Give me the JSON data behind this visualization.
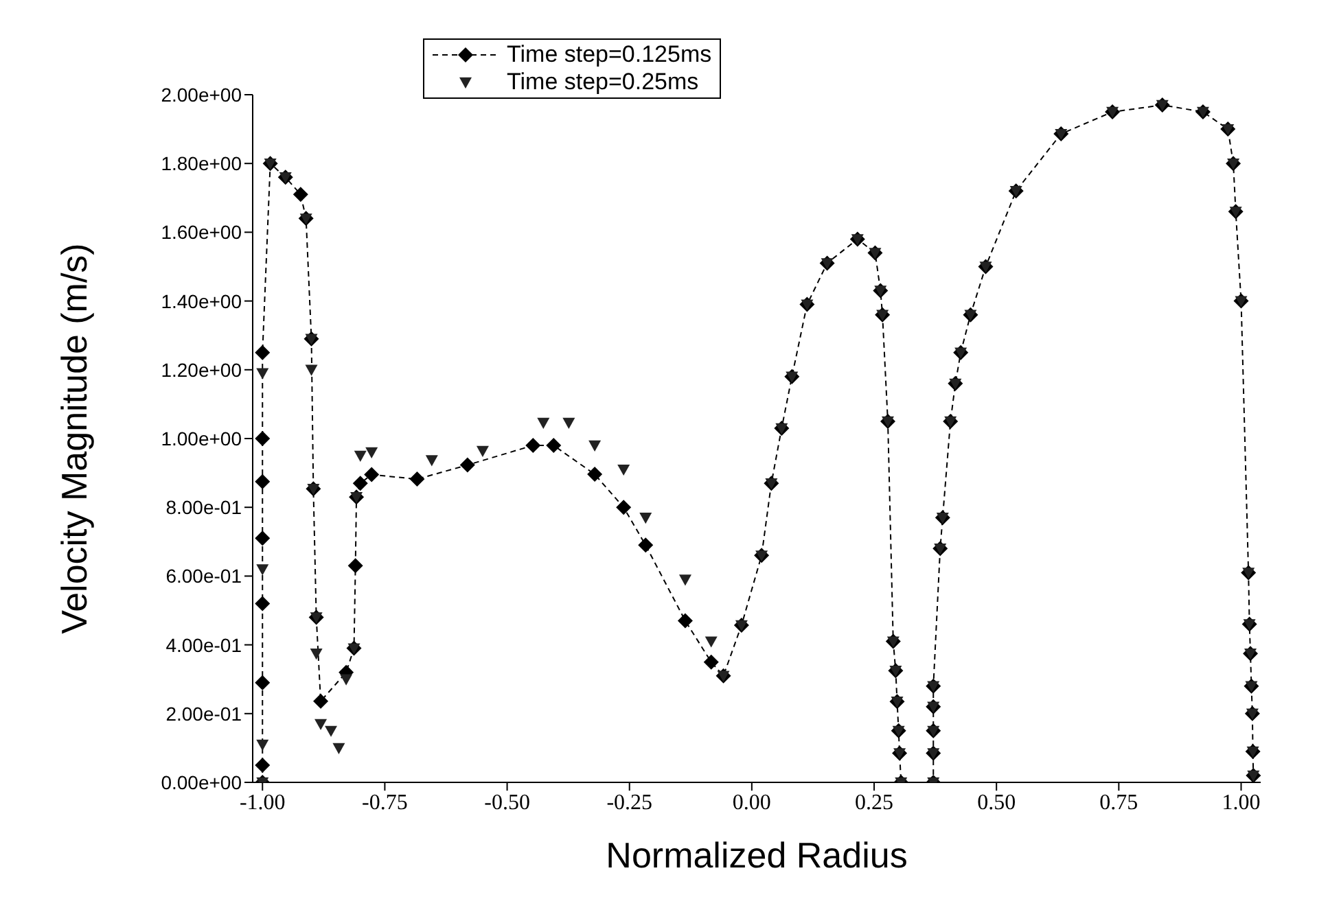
{
  "chart_data": {
    "type": "scatter",
    "xlabel": "Normalized Radius",
    "ylabel": "Velocity Magnitude (m/s)",
    "xlim": [
      -1.02,
      1.04
    ],
    "ylim": [
      0,
      2
    ],
    "xticks": [
      {
        "value": -1,
        "label": "-1.00"
      },
      {
        "value": -0.75,
        "label": "-0.75"
      },
      {
        "value": -0.5,
        "label": "-0.50"
      },
      {
        "value": -0.25,
        "label": "-0.25"
      },
      {
        "value": 0,
        "label": "0.00"
      },
      {
        "value": 0.25,
        "label": "0.25"
      },
      {
        "value": 0.5,
        "label": "0.50"
      },
      {
        "value": 0.75,
        "label": "0.75"
      },
      {
        "value": 1,
        "label": "1.00"
      }
    ],
    "yticks": [
      {
        "value": 0,
        "label": "0.00e+00"
      },
      {
        "value": 0.2,
        "label": "2.00e-01"
      },
      {
        "value": 0.4,
        "label": "4.00e-01"
      },
      {
        "value": 0.6,
        "label": "6.00e-01"
      },
      {
        "value": 0.8,
        "label": "8.00e-01"
      },
      {
        "value": 1.0,
        "label": "1.00e+00"
      },
      {
        "value": 1.2,
        "label": "1.20e+00"
      },
      {
        "value": 1.4,
        "label": "1.40e+00"
      },
      {
        "value": 1.6,
        "label": "1.60e+00"
      },
      {
        "value": 1.8,
        "label": "1.80e+00"
      },
      {
        "value": 2.0,
        "label": "2.00e+00"
      }
    ],
    "grid": false,
    "legend": "top",
    "series": [
      {
        "name": "Time step=0.125ms",
        "type": "line",
        "color": "#000000",
        "marker": "diamond",
        "line_style": "dashed",
        "x": [
          -1.0,
          -1.0,
          -1.0,
          -1.0,
          -1.0,
          -1.0,
          -1.0,
          -1.0,
          -0.984,
          -0.953,
          -0.922,
          -0.911,
          -0.9,
          -0.896,
          -0.89,
          -0.881,
          -0.829,
          -0.813,
          -0.81,
          -0.808,
          -0.8,
          -0.777,
          -0.684,
          -0.581,
          -0.447,
          -0.405,
          -0.321,
          -0.262,
          -0.217,
          -0.136,
          -0.083,
          -0.058,
          -0.021,
          0.02,
          0.04,
          0.061,
          0.082,
          0.113,
          0.154,
          0.216,
          0.252,
          0.263,
          0.267,
          0.278,
          0.289,
          0.294,
          0.297,
          0.3,
          0.302,
          0.305,
          0.371,
          0.371,
          0.371,
          0.371,
          0.371,
          0.385,
          0.39,
          0.406,
          0.416,
          0.427,
          0.447,
          0.478,
          0.54,
          0.632,
          0.737,
          0.839,
          0.922,
          0.973,
          0.984,
          0.989,
          1.0,
          1.015,
          1.017,
          1.019,
          1.021,
          1.023,
          1.024,
          1.025
        ],
        "values": [
          0,
          0.05,
          0.29,
          0.52,
          0.71,
          0.875,
          1.0,
          1.25,
          1.8,
          1.76,
          1.71,
          1.64,
          1.29,
          0.854,
          0.48,
          0.236,
          0.32,
          0.39,
          0.63,
          0.83,
          0.87,
          0.895,
          0.882,
          0.923,
          0.98,
          0.98,
          0.896,
          0.8,
          0.69,
          0.47,
          0.35,
          0.31,
          0.457,
          0.66,
          0.87,
          1.03,
          1.18,
          1.39,
          1.51,
          1.58,
          1.54,
          1.43,
          1.36,
          1.05,
          0.41,
          0.325,
          0.235,
          0.15,
          0.085,
          0,
          0,
          0.085,
          0.15,
          0.22,
          0.28,
          0.68,
          0.77,
          1.05,
          1.16,
          1.25,
          1.36,
          1.5,
          1.72,
          1.886,
          1.95,
          1.97,
          1.95,
          1.9,
          1.8,
          1.66,
          1.4,
          0.61,
          0.46,
          0.375,
          0.28,
          0.2,
          0.09,
          0.02
        ]
      },
      {
        "name": "Time step=0.25ms",
        "color": "#222222",
        "marker": "triangle",
        "x": [
          -1.0,
          -1.0,
          -1.0,
          -1.0,
          -0.984,
          -0.953,
          -0.911,
          -0.9,
          -0.9,
          -0.896,
          -0.89,
          -0.89,
          -0.881,
          -0.86,
          -0.844,
          -0.829,
          -0.813,
          -0.808,
          -0.8,
          -0.777,
          -0.654,
          -0.55,
          -0.426,
          -0.374,
          -0.321,
          -0.262,
          -0.217,
          -0.136,
          -0.083,
          -0.058,
          -0.021,
          0.02,
          0.04,
          0.061,
          0.082,
          0.113,
          0.154,
          0.216,
          0.252,
          0.263,
          0.267,
          0.278,
          0.289,
          0.294,
          0.297,
          0.3,
          0.302,
          0.305,
          0.371,
          0.371,
          0.371,
          0.371,
          0.371,
          0.385,
          0.39,
          0.406,
          0.416,
          0.427,
          0.447,
          0.478,
          0.54,
          0.632,
          0.737,
          0.839,
          0.922,
          0.973,
          0.984,
          0.989,
          1.0,
          1.015,
          1.017,
          1.019,
          1.021,
          1.023,
          1.024,
          1.025
        ],
        "values": [
          0,
          0.11,
          0.62,
          1.19,
          1.8,
          1.76,
          1.64,
          1.29,
          1.2,
          0.854,
          0.48,
          0.375,
          0.17,
          0.15,
          0.1,
          0.3,
          0.39,
          0.83,
          0.95,
          0.96,
          0.937,
          0.964,
          1.046,
          1.046,
          0.98,
          0.91,
          0.77,
          0.59,
          0.41,
          0.31,
          0.457,
          0.66,
          0.87,
          1.03,
          1.18,
          1.39,
          1.51,
          1.58,
          1.54,
          1.43,
          1.36,
          1.05,
          0.41,
          0.325,
          0.235,
          0.15,
          0.085,
          0,
          0,
          0.085,
          0.15,
          0.22,
          0.28,
          0.68,
          0.77,
          1.05,
          1.16,
          1.25,
          1.36,
          1.5,
          1.72,
          1.886,
          1.95,
          1.97,
          1.95,
          1.9,
          1.8,
          1.66,
          1.4,
          0.61,
          0.46,
          0.375,
          0.28,
          0.2,
          0.09,
          0.02
        ]
      }
    ]
  }
}
